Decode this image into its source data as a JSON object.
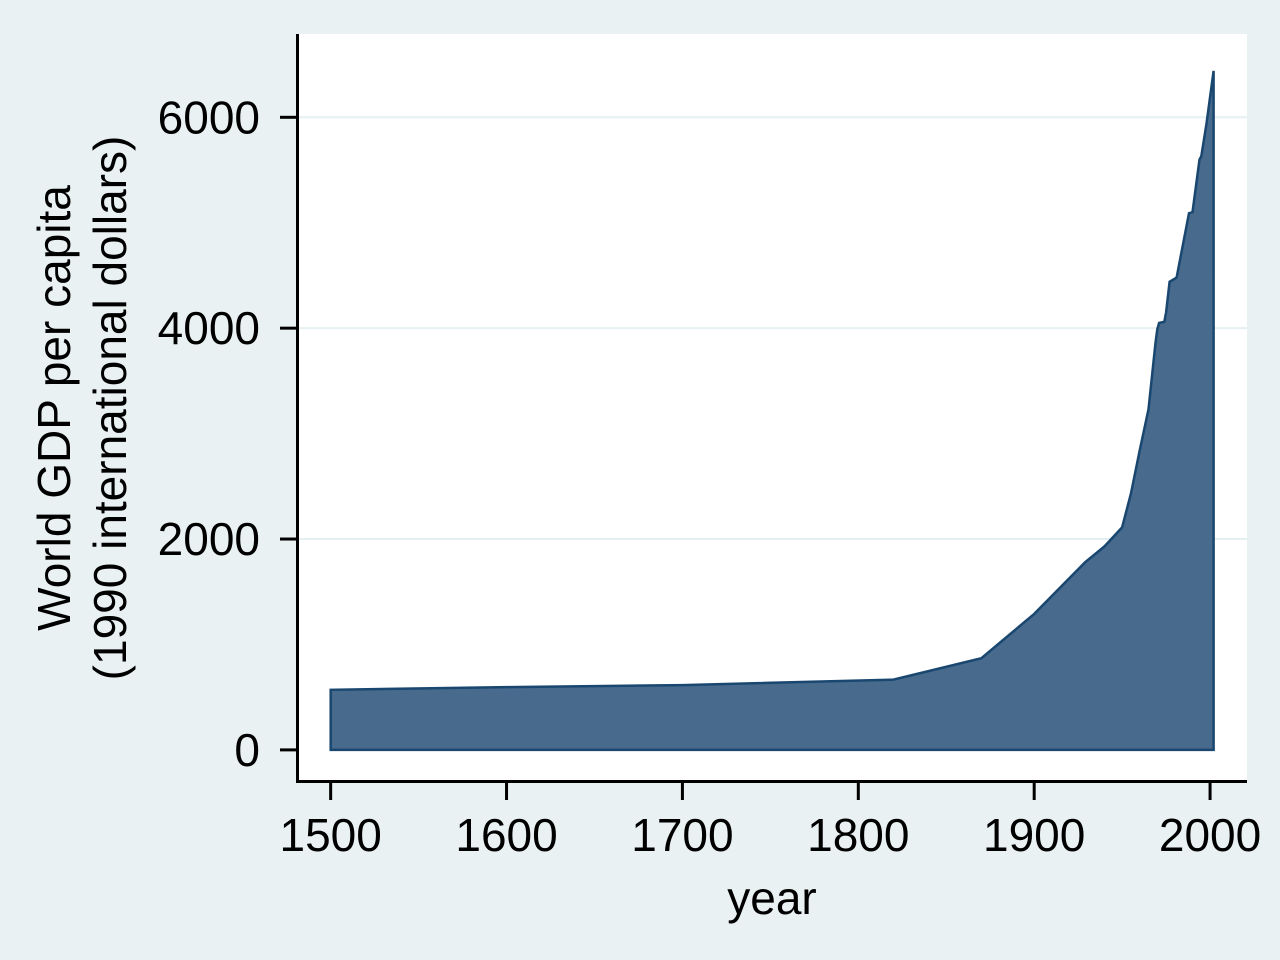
{
  "chart_data": {
    "type": "area",
    "title": "",
    "xlabel": "year",
    "ylabel": "World GDP per capita\n(1990 international dollars)",
    "ylabel_lines": [
      "World GDP per capita",
      "(1990 international dollars)"
    ],
    "x_tick_labels": [
      "1500",
      "1600",
      "1700",
      "1800",
      "1900",
      "2000"
    ],
    "x_tick_values": [
      1500,
      1600,
      1700,
      1800,
      1900,
      2000
    ],
    "y_tick_labels": [
      "0",
      "2000",
      "4000",
      "6000"
    ],
    "y_tick_values": [
      0,
      2000,
      4000,
      6000
    ],
    "xlim": [
      1482,
      2021
    ],
    "ylim": [
      -295,
      6790
    ],
    "grid": "horizontal, light, at 2000/4000/6000 only",
    "legend": "none",
    "series": [
      {
        "name": "World GDP per capita (1990 international dollars)",
        "fill_color": "#476A8D",
        "line_color": "#1A476F",
        "points": [
          [
            1500,
            570
          ],
          [
            1600,
            596
          ],
          [
            1700,
            615
          ],
          [
            1820,
            667
          ],
          [
            1870,
            870
          ],
          [
            1900,
            1290
          ],
          [
            1913,
            1510
          ],
          [
            1929,
            1780
          ],
          [
            1940,
            1930
          ],
          [
            1950,
            2110
          ],
          [
            1955,
            2430
          ],
          [
            1960,
            2840
          ],
          [
            1965,
            3230
          ],
          [
            1969,
            3860
          ],
          [
            1970,
            3990
          ],
          [
            1971,
            4050
          ],
          [
            1974,
            4060
          ],
          [
            1975,
            4150
          ],
          [
            1977,
            4440
          ],
          [
            1981,
            4480
          ],
          [
            1988,
            5090
          ],
          [
            1990,
            5100
          ],
          [
            1994,
            5600
          ],
          [
            1995,
            5630
          ],
          [
            1998,
            5940
          ],
          [
            2002,
            6440
          ]
        ]
      }
    ],
    "colors": {
      "background": "#E9F1F2",
      "plot_background": "#FFFFFF",
      "gridline": "#E6EFF1",
      "axis": "#000000",
      "text": "#000000"
    }
  }
}
